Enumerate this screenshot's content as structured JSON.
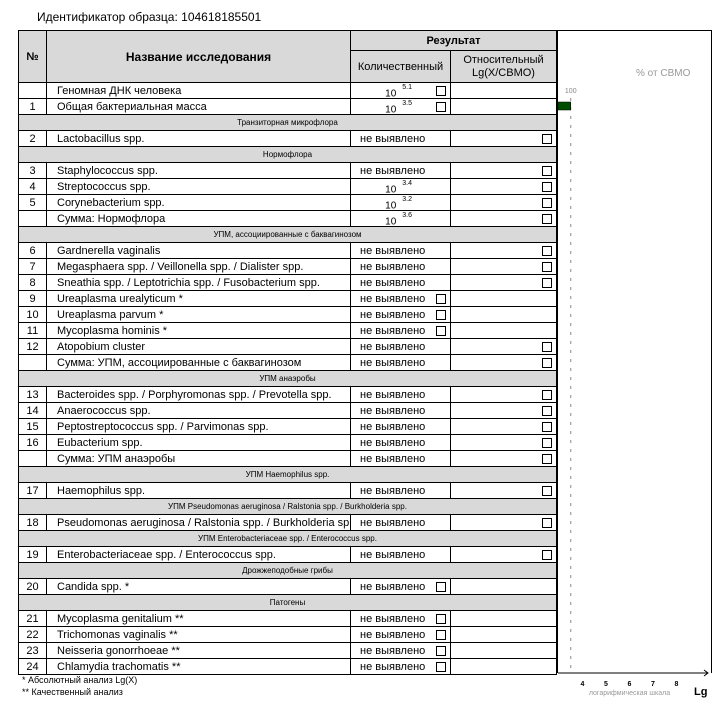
{
  "sample_id": "Идентификатор образца: 104618185501",
  "header": {
    "num": "№",
    "name": "Название исследования",
    "result": "Результат",
    "quantitative": "Количественный",
    "relative": "Относительный Lg(X/СВМО)"
  },
  "rows": [
    {
      "num": "",
      "name": "Геномная ДНК человека",
      "base": "10",
      "exp": "5.1",
      "box": "quant"
    },
    {
      "num": "1",
      "name": "Общая бактериальная масса",
      "base": "10",
      "exp": "3.5",
      "box": "quant"
    },
    {
      "section": "Транзиторная микрофлора"
    },
    {
      "num": "2",
      "name": "Lactobacillus spp.",
      "result": "не выявлено",
      "box": "rel"
    },
    {
      "section": "Нормофлора"
    },
    {
      "num": "3",
      "name": "Staphylococcus spp.",
      "result": "не выявлено",
      "box": "rel"
    },
    {
      "num": "4",
      "name": "Streptococcus spp.",
      "base": "10",
      "exp": "3.4",
      "box": "rel"
    },
    {
      "num": "5",
      "name": "Corynebacterium spp.",
      "base": "10",
      "exp": "3.2",
      "box": "rel"
    },
    {
      "num": "",
      "name": "Сумма: Нормофлора",
      "base": "10",
      "exp": "3.6",
      "box": "rel"
    },
    {
      "section": "УПМ, ассоциированные с баквагинозом"
    },
    {
      "num": "6",
      "name": "Gardnerella vaginalis",
      "result": "не выявлено",
      "box": "rel"
    },
    {
      "num": "7",
      "name": "Megasphaera spp. / Veillonella spp. / Dialister spp.",
      "result": "не выявлено",
      "box": "rel"
    },
    {
      "num": "8",
      "name": "Sneathia spp. / Leptotrichia spp. / Fusobacterium spp.",
      "result": "не выявлено",
      "box": "rel"
    },
    {
      "num": "9",
      "name": "Ureaplasma urealyticum *",
      "result": "не выявлено",
      "box": "quant"
    },
    {
      "num": "10",
      "name": "Ureaplasma parvum *",
      "result": "не выявлено",
      "box": "quant"
    },
    {
      "num": "11",
      "name": "Mycoplasma hominis *",
      "result": "не выявлено",
      "box": "quant"
    },
    {
      "num": "12",
      "name": "Atopobium cluster",
      "result": "не выявлено",
      "box": "rel"
    },
    {
      "num": "",
      "name": "Сумма: УПМ, ассоциированные с баквагинозом",
      "result": "не выявлено",
      "box": "rel"
    },
    {
      "section": "УПМ анаэробы"
    },
    {
      "num": "13",
      "name": "Bacteroides spp. / Porphyromonas spp. / Prevotella spp.",
      "result": "не выявлено",
      "box": "rel"
    },
    {
      "num": "14",
      "name": "Anaerococcus spp.",
      "result": "не выявлено",
      "box": "rel"
    },
    {
      "num": "15",
      "name": "Peptostreptococcus spp. / Parvimonas spp.",
      "result": "не выявлено",
      "box": "rel"
    },
    {
      "num": "16",
      "name": "Eubacterium spp.",
      "result": "не выявлено",
      "box": "rel"
    },
    {
      "num": "",
      "name": "Сумма: УПМ анаэробы",
      "result": "не выявлено",
      "box": "rel"
    },
    {
      "section": "УПМ Haemophilus spp."
    },
    {
      "num": "17",
      "name": "Haemophilus spp.",
      "result": "не выявлено",
      "box": "rel"
    },
    {
      "section": "УПМ Pseudomonas aeruginosa / Ralstonia spp. / Burkholderia spp."
    },
    {
      "num": "18",
      "name": "Pseudomonas aeruginosa / Ralstonia spp. / Burkholderia spp.",
      "result": "не выявлено",
      "box": "rel"
    },
    {
      "section": "УПМ Enterobacteriaceae spp. / Enterococcus spp."
    },
    {
      "num": "19",
      "name": "Enterobacteriaceae spp. / Enterococcus spp.",
      "result": "не выявлено",
      "box": "rel"
    },
    {
      "section": "Дрожжеподобные грибы"
    },
    {
      "num": "20",
      "name": "Candida spp. *",
      "result": "не выявлено",
      "box": "quant"
    },
    {
      "section": "Патогены"
    },
    {
      "num": "21",
      "name": "Mycoplasma genitalium **",
      "result": "не выявлено",
      "box": "quant"
    },
    {
      "num": "22",
      "name": "Trichomonas vaginalis **",
      "result": "не выявлено",
      "box": "quant"
    },
    {
      "num": "23",
      "name": "Neisseria gonorrhoeae **",
      "result": "не выявлено",
      "box": "quant"
    },
    {
      "num": "24",
      "name": "Chlamydia trachomatis **",
      "result": "не выявлено",
      "box": "quant"
    }
  ],
  "footnotes": [
    "*  Абсолютный анализ Lg(X)",
    "** Качественный анализ"
  ],
  "chart_data": {
    "type": "bar",
    "orientation": "horizontal",
    "title": "% от СВМО",
    "xlabel": "логарифмическая шкала",
    "axis_unit": "Lg",
    "x_ticks": [
      4,
      5,
      6,
      7,
      8
    ],
    "xlim": [
      3,
      9
    ],
    "reference_line": {
      "value": 3.5,
      "label": "100"
    },
    "bars": [
      {
        "row": "Общая бактериальная масса",
        "value": 3.5,
        "color": "#004d00"
      }
    ]
  }
}
